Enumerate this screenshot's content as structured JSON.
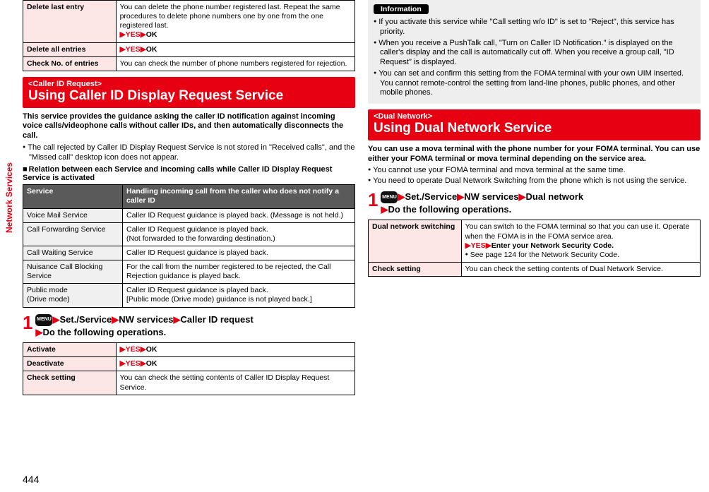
{
  "side_label": "Network Services",
  "page_number": "444",
  "left": {
    "top_table": [
      {
        "label": "Delete last entry",
        "body_plain": "You can delete the phone number registered last. Repeat the same procedures to delete phone numbers one by one from the one registered last.",
        "has_yesok": true
      },
      {
        "label": "Delete all entries",
        "body_plain": "",
        "has_yesok": true
      },
      {
        "label": "Check No. of entries",
        "body_plain": "You can check the number of phone numbers registered for rejection.",
        "has_yesok": false
      }
    ],
    "redbar": {
      "tag": "<Caller ID Request>",
      "title": "Using Caller ID Display Request Service"
    },
    "intro": "This service provides the guidance asking the caller ID notification against incoming voice calls/videophone calls without caller IDs, and then automatically disconnects the call.",
    "bullets": [
      "The call rejected by Caller ID Display Request Service is not stored in \"Received calls\", and the \"Missed call\" desktop icon does not appear."
    ],
    "sub_heading": "Relation between each Service and incoming calls while Caller ID Display Request Service is activated",
    "rel_table": {
      "head": [
        "Service",
        "Handling incoming call from the caller who does not notify a caller ID"
      ],
      "rows": [
        [
          "Voice Mail Service",
          "Caller ID Request guidance is played back. (Message is not held.)"
        ],
        [
          "Call Forwarding Service",
          "Caller ID Request guidance is played back.\n(Not forwarded to the forwarding destination.)"
        ],
        [
          "Call Waiting Service",
          "Caller ID Request guidance is played back."
        ],
        [
          "Nuisance Call Blocking Service",
          "For the call from the number registered to be rejected, the Call Rejection guidance is played back."
        ],
        [
          "Public mode\n(Drive mode)",
          "Caller ID Request guidance is played back.\n[Public mode (Drive mode) guidance is not played back.]"
        ]
      ]
    },
    "step": {
      "num": "1",
      "menu_label": "MENU",
      "parts": [
        "Set./Service",
        "NW services",
        "Caller ID request",
        "Do the following operations."
      ]
    },
    "ops_table": [
      {
        "label": "Activate",
        "body_plain": "",
        "has_yesok": true
      },
      {
        "label": "Deactivate",
        "body_plain": "",
        "has_yesok": true
      },
      {
        "label": "Check setting",
        "body_plain": "You can check the setting contents of Caller ID Display Request Service.",
        "has_yesok": false
      }
    ],
    "yesok": {
      "yes": "YES",
      "ok": "OK"
    }
  },
  "right": {
    "info_label": "Information",
    "info_items": [
      "If you activate this service while \"Call setting w/o ID\" is set to \"Reject\", this service has priority.",
      "When you receive a PushTalk call, \"Turn on Caller ID Notification.\" is displayed on the caller's display and the call is automatically cut off. When you receive a group call, \"ID Request\" is displayed.",
      "You can set and confirm this setting from the FOMA terminal with your own UIM inserted. You cannot remote-control the setting from land-line phones, public phones, and other mobile phones."
    ],
    "redbar": {
      "tag": "<Dual Network>",
      "title": "Using Dual Network Service"
    },
    "intro": "You can use a mova terminal with the phone number for your FOMA terminal. You can use either your FOMA terminal or mova terminal depending on the service area.",
    "bullets": [
      "You cannot use your FOMA terminal and mova terminal at the same time.",
      "You need to operate Dual Network Switching from the phone which is not using the service."
    ],
    "step": {
      "num": "1",
      "menu_label": "MENU",
      "parts": [
        "Set./Service",
        "NW services",
        "Dual network",
        "Do the following operations."
      ]
    },
    "dual_table": [
      {
        "label": "Dual network switching",
        "body_lines": [
          "You can switch to the FOMA terminal so that you can use it. Operate when the FOMA is in the FOMA service area."
        ],
        "yes_line": {
          "yes": "YES",
          "rest": "Enter your Network Security Code."
        },
        "trail_bullet": "See page 124 for the Network Security Code."
      },
      {
        "label": "Check setting",
        "body_lines": [
          "You can check the setting contents of Dual Network Service."
        ]
      }
    ]
  }
}
